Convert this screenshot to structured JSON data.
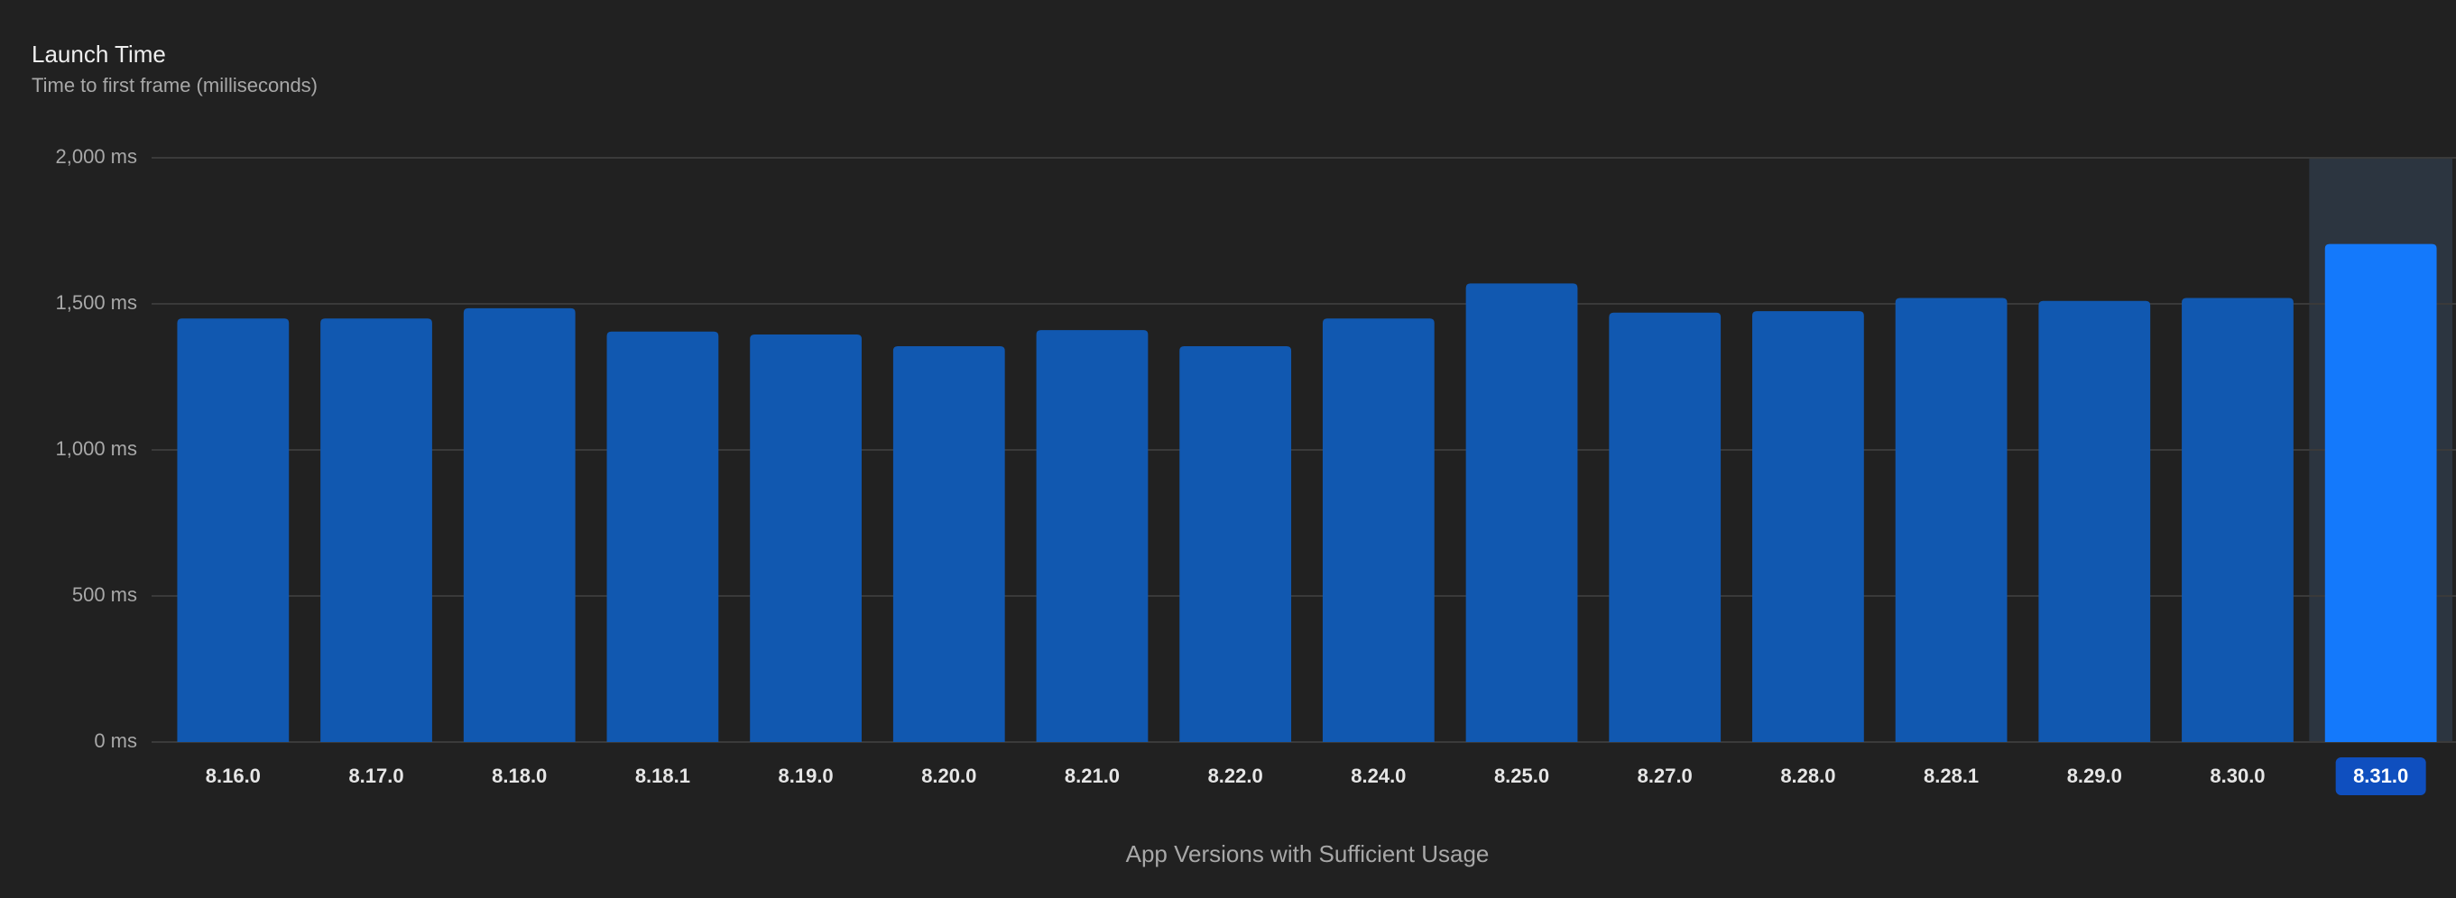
{
  "chart_data": {
    "type": "bar",
    "title": "Launch Time",
    "subtitle": "Time to first frame (milliseconds)",
    "x_label": "App Versions with Sufficient Usage",
    "categories": [
      "8.16.0",
      "8.17.0",
      "8.18.0",
      "8.18.1",
      "8.19.0",
      "8.20.0",
      "8.21.0",
      "8.22.0",
      "8.24.0",
      "8.25.0",
      "8.27.0",
      "8.28.0",
      "8.28.1",
      "8.29.0",
      "8.30.0",
      "8.31.0"
    ],
    "values": [
      1450,
      1450,
      1485,
      1405,
      1395,
      1355,
      1410,
      1355,
      1450,
      1570,
      1470,
      1475,
      1520,
      1510,
      1520,
      1705
    ],
    "color": "#1158b0",
    "selected": 15,
    "selected_color": "#1479fb",
    "ylim": [
      0,
      2000
    ],
    "yticks": [
      {
        "value": 0,
        "label": "0 ms"
      },
      {
        "value": 500,
        "label": "500 ms"
      },
      {
        "value": 1000,
        "label": "1,000 ms"
      },
      {
        "value": 1500,
        "label": "1,500 ms"
      },
      {
        "value": 2000,
        "label": "2,000 ms"
      }
    ],
    "grid": true
  }
}
